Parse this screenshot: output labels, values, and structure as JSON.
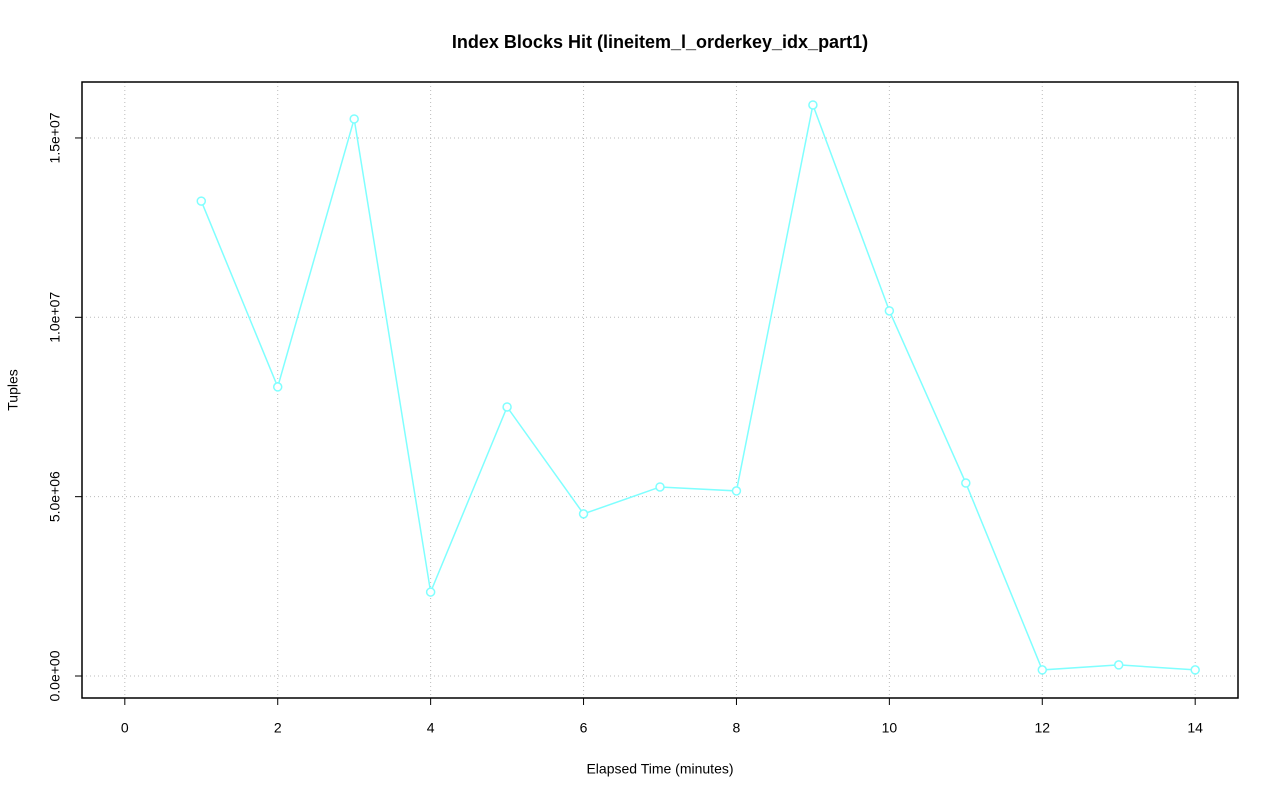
{
  "chart_data": {
    "type": "line",
    "title": "Index Blocks Hit (lineitem_l_orderkey_idx_part1)",
    "x_label": "Elapsed Time (minutes)",
    "y_label": "Tuples",
    "x": [
      1,
      2,
      3,
      4,
      5,
      6,
      7,
      8,
      9,
      10,
      11,
      12,
      13,
      14
    ],
    "series": [
      {
        "name": "lineitem_l_orderkey_idx_part1",
        "color": "#7fffff",
        "values": [
          13240000,
          8060000,
          15530000,
          2340000,
          7500000,
          4520000,
          5270000,
          5160000,
          15920000,
          10180000,
          5380000,
          170000,
          310000,
          170000
        ]
      }
    ],
    "xlim": [
      -0.56,
      14.56
    ],
    "xticks": [
      0,
      2,
      4,
      6,
      8,
      10,
      12,
      14
    ],
    "ylim": [
      -613000,
      16560000
    ],
    "yticks": [
      {
        "value": 0,
        "label": "0.0e+00"
      },
      {
        "value": 5000000,
        "label": "5.0e+06"
      },
      {
        "value": 10000000,
        "label": "1.0e+07"
      },
      {
        "value": 15000000,
        "label": "1.5e+07"
      }
    ],
    "grid": true
  }
}
